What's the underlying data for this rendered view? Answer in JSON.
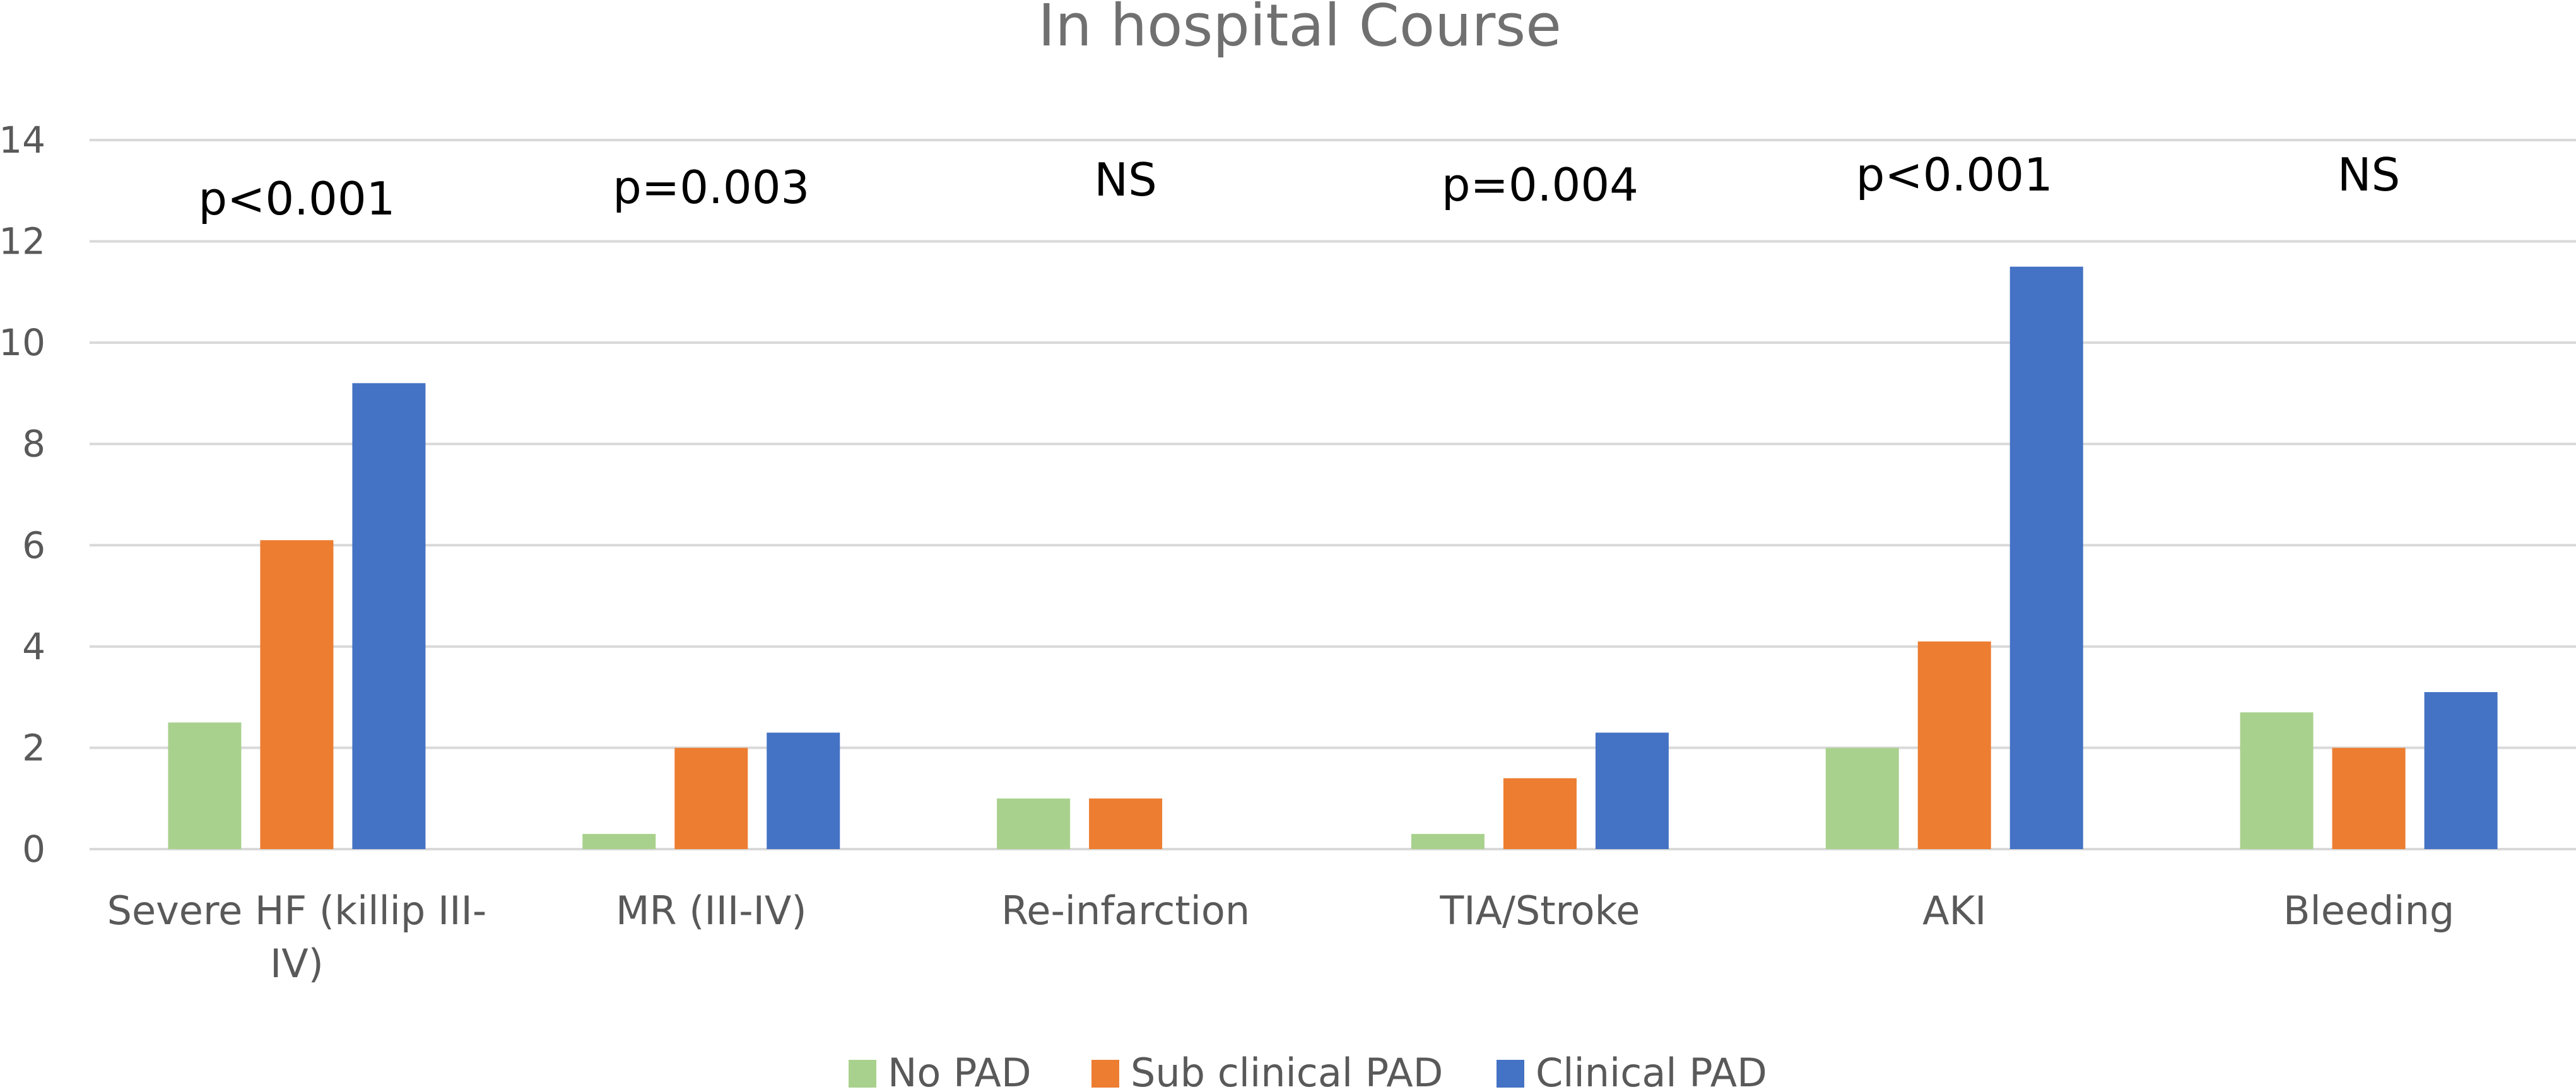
{
  "chart_data": {
    "type": "bar",
    "title": "In hospital Course",
    "xlabel": "",
    "ylabel": "",
    "ylim": [
      0,
      14
    ],
    "yticks": [
      "0",
      "2",
      "4",
      "6",
      "8",
      "10",
      "12",
      "14"
    ],
    "grid": true,
    "legend_position": "bottom",
    "categories": [
      [
        "Severe HF (killip III-",
        "IV)"
      ],
      [
        "MR (III-IV)"
      ],
      [
        "Re-infarction"
      ],
      [
        "TIA/Stroke"
      ],
      [
        "AKI"
      ],
      [
        "Bleeding"
      ]
    ],
    "annotations": [
      "p<0.001",
      "p=0.003",
      "NS",
      "p=0.004",
      "p<0.001",
      "NS"
    ],
    "series": [
      {
        "name": "No PAD",
        "color": "#a9d18e",
        "values": [
          2.5,
          0.3,
          1.0,
          0.3,
          2.0,
          2.7
        ]
      },
      {
        "name": "Sub clinical PAD",
        "color": "#ed7d31",
        "values": [
          6.1,
          2.0,
          1.0,
          1.4,
          4.1,
          2.0
        ]
      },
      {
        "name": "Clinical PAD",
        "color": "#4472c4",
        "values": [
          9.2,
          2.3,
          0,
          2.3,
          11.5,
          3.1
        ]
      }
    ]
  }
}
